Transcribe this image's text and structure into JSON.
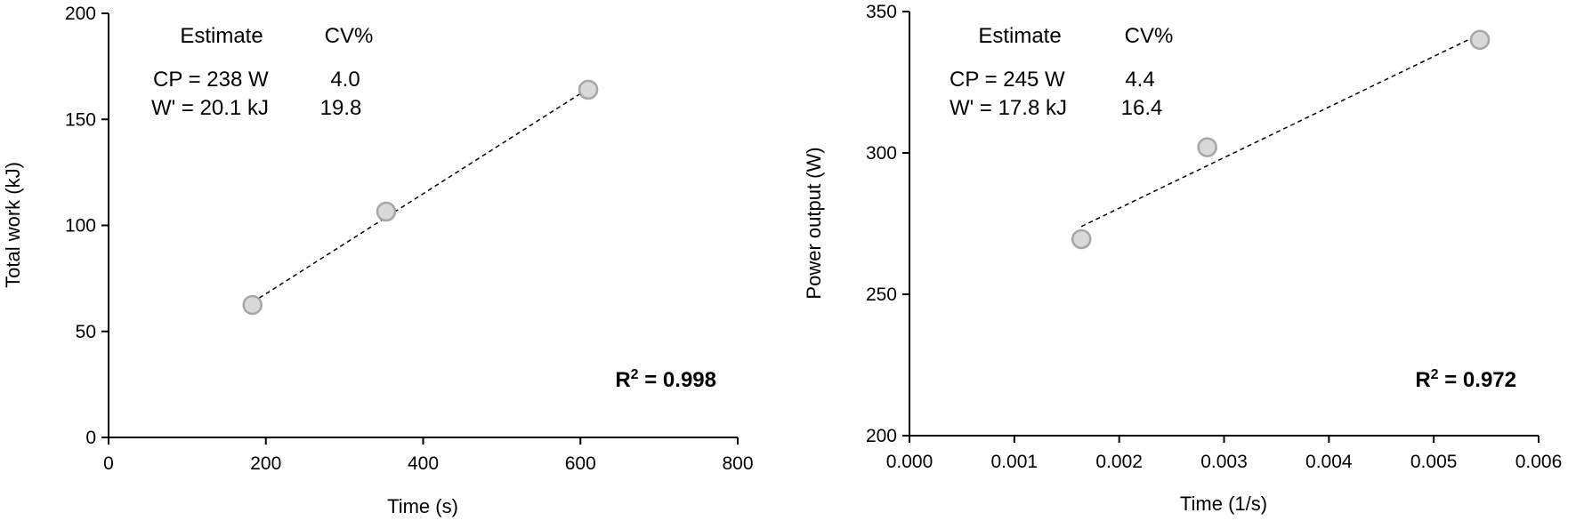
{
  "chart_data": [
    {
      "type": "scatter",
      "xlabel": "Time (s)",
      "ylabel": "Total work (kJ)",
      "xlim": [
        0,
        800
      ],
      "ylim": [
        0,
        200
      ],
      "xticks": [
        0,
        200,
        400,
        600,
        800
      ],
      "yticks": [
        0,
        50,
        100,
        150,
        200
      ],
      "xtick_labels": [
        "0",
        "200",
        "400",
        "600",
        "800"
      ],
      "ytick_labels": [
        "0",
        "50",
        "100",
        "150",
        "200"
      ],
      "points": [
        {
          "x": 183,
          "y": 62.5
        },
        {
          "x": 353,
          "y": 106.5
        },
        {
          "x": 610,
          "y": 164
        }
      ],
      "trendline": {
        "style": "dashed",
        "from": [
          183,
          63.7
        ],
        "to": [
          610,
          164.5
        ]
      },
      "estimates_table": {
        "headers": [
          "Estimate",
          "CV%"
        ],
        "rows": [
          [
            "CP = 238 W",
            "4.0"
          ],
          [
            "W' = 20.1 kJ",
            "19.8"
          ]
        ]
      },
      "r2_label": "R",
      "r2_sup": "2",
      "r2_value": " = 0.998",
      "grid": false
    },
    {
      "type": "scatter",
      "xlabel": "Time (1/s)",
      "ylabel": "Power output (W)",
      "xlim": [
        0,
        0.006
      ],
      "ylim": [
        200,
        350
      ],
      "xticks": [
        0,
        0.001,
        0.002,
        0.003,
        0.004,
        0.005,
        0.006
      ],
      "yticks": [
        200,
        250,
        300,
        350
      ],
      "xtick_labels": [
        "0.000",
        "0.001",
        "0.002",
        "0.003",
        "0.004",
        "0.005",
        "0.006"
      ],
      "ytick_labels": [
        "200",
        "250",
        "300",
        "350"
      ],
      "points": [
        {
          "x": 0.00164,
          "y": 269.5
        },
        {
          "x": 0.00284,
          "y": 302
        },
        {
          "x": 0.00544,
          "y": 340
        }
      ],
      "trendline": {
        "style": "dashed",
        "from": [
          0.00164,
          274
        ],
        "to": [
          0.00544,
          342
        ]
      },
      "estimates_table": {
        "headers": [
          "Estimate",
          "CV%"
        ],
        "rows": [
          [
            "CP = 245 W",
            "4.4"
          ],
          [
            "W' = 17.8 kJ",
            "16.4"
          ]
        ]
      },
      "r2_label": "R",
      "r2_sup": "2",
      "r2_value": " = 0.972",
      "grid": false
    }
  ],
  "colors": {
    "marker_fill": "#d9d9d9",
    "marker_stroke": "#a6a6a6",
    "axis": "#000000",
    "trendline": "#000000"
  }
}
